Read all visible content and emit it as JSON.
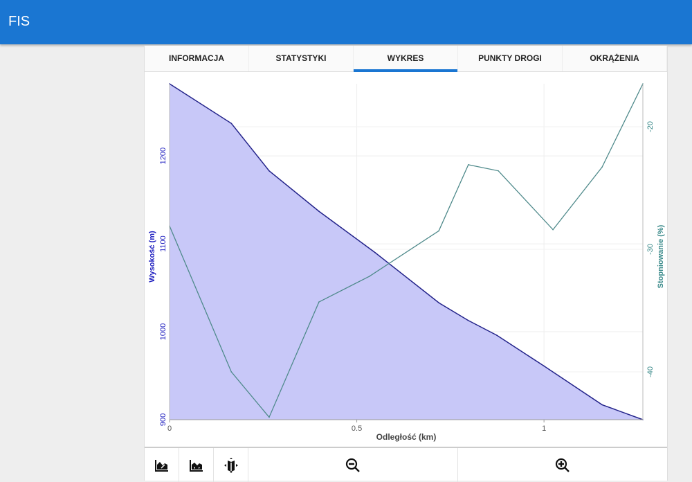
{
  "app": {
    "title": "FIS"
  },
  "tabs": [
    {
      "label": "INFORMACJA"
    },
    {
      "label": "STATYSTYKI"
    },
    {
      "label": "WYKRES",
      "active": true
    },
    {
      "label": "PUNKTY DROGI"
    },
    {
      "label": "OKRĄŻENIA"
    }
  ],
  "toolbar": {
    "icons": [
      "area-chart-icon",
      "area-chart-pan-icon",
      "map-pan-icon",
      "zoom-out-icon",
      "zoom-in-icon"
    ]
  },
  "chart_data": {
    "type": "area+line",
    "xlabel": "Odległość (km)",
    "ylabel_left": "Wysokość (m)",
    "ylabel_right": "Stopniowanie (%)",
    "xlim": [
      0,
      1.264
    ],
    "ylim_left": [
      900,
      1282
    ],
    "ylim_right": [
      -43.9,
      -16.5
    ],
    "x_ticks": [
      "0",
      "0.5",
      "1"
    ],
    "x_tick_values": [
      0,
      0.5,
      1
    ],
    "y_left_ticks": [
      "900",
      "1000",
      "1100",
      "1200"
    ],
    "y_left_tick_values": [
      900,
      1000,
      1100,
      1200
    ],
    "y_right_ticks": [
      "-40",
      "-30",
      "-20"
    ],
    "y_right_tick_values": [
      -40,
      -30,
      -20
    ],
    "grid": true,
    "colors": {
      "elevation_fill": "#c8c8f8",
      "elevation_line": "#23238a",
      "grade_line": "#4f8a8b",
      "left_axis": "#2020c0",
      "right_axis": "#3a8a8a"
    },
    "series": [
      {
        "axis": "left",
        "type": "area",
        "x": [
          0,
          0.165,
          0.266,
          0.399,
          0.549,
          0.719,
          0.797,
          0.874,
          1.0,
          1.155,
          1.264
        ],
        "y": [
          1282,
          1237,
          1183,
          1137,
          1090,
          1033,
          1013,
          996,
          961,
          917,
          900
        ]
      },
      {
        "axis": "right",
        "type": "line",
        "x": [
          0,
          0.165,
          0.266,
          0.399,
          0.534,
          0.719,
          0.798,
          0.878,
          1.024,
          1.155,
          1.264
        ],
        "y": [
          -28.1,
          -40.0,
          -43.7,
          -34.3,
          -32.2,
          -28.5,
          -23.1,
          -23.6,
          -28.4,
          -23.3,
          -16.5
        ]
      }
    ]
  }
}
